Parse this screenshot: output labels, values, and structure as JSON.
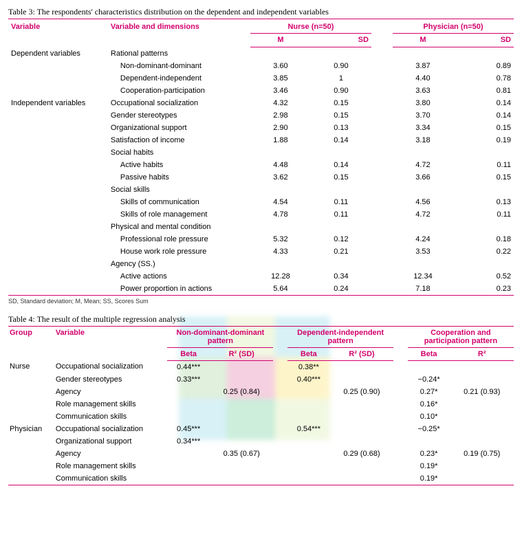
{
  "table3": {
    "caption": "Table 3: The respondents' characteristics distribution on the dependent and independent variables",
    "columns": {
      "variable": "Variable",
      "dimensions": "Variable and dimensions",
      "nurse": "Nurse (n=50)",
      "physician": "Physician (n=50)",
      "M": "M",
      "SD": "SD"
    },
    "rows": [
      {
        "var": "Dependent variables",
        "dim": "Rational patterns",
        "nm": "",
        "ns": "",
        "pm": "",
        "ps": "",
        "indent": false
      },
      {
        "var": "",
        "dim": "Non-dominant-dominant",
        "nm": "3.60",
        "ns": "0.90",
        "pm": "3.87",
        "ps": "0.89",
        "indent": true
      },
      {
        "var": "",
        "dim": "Dependent-independent",
        "nm": "3.85",
        "ns": "1",
        "pm": "4.40",
        "ps": "0.78",
        "indent": true
      },
      {
        "var": "",
        "dim": "Cooperation-participation",
        "nm": "3.46",
        "ns": "0.90",
        "pm": "3.63",
        "ps": "0.81",
        "indent": true
      },
      {
        "var": "Independent variables",
        "dim": "Occupational socialization",
        "nm": "4.32",
        "ns": "0.15",
        "pm": "3.80",
        "ps": "0.14",
        "indent": false
      },
      {
        "var": "",
        "dim": "Gender stereotypes",
        "nm": "2.98",
        "ns": "0.15",
        "pm": "3.70",
        "ps": "0.14",
        "indent": false
      },
      {
        "var": "",
        "dim": "Organizational support",
        "nm": "2.90",
        "ns": "0.13",
        "pm": "3.34",
        "ps": "0.15",
        "indent": false
      },
      {
        "var": "",
        "dim": "Satisfaction of income",
        "nm": "1.88",
        "ns": "0.14",
        "pm": "3.18",
        "ps": "0.19",
        "indent": false
      },
      {
        "var": "",
        "dim": "Social habits",
        "nm": "",
        "ns": "",
        "pm": "",
        "ps": "",
        "indent": false
      },
      {
        "var": "",
        "dim": "Active habits",
        "nm": "4.48",
        "ns": "0.14",
        "pm": "4.72",
        "ps": "0.11",
        "indent": true
      },
      {
        "var": "",
        "dim": "Passive habits",
        "nm": "3.62",
        "ns": "0.15",
        "pm": "3.66",
        "ps": "0.15",
        "indent": true
      },
      {
        "var": "",
        "dim": "Social skills",
        "nm": "",
        "ns": "",
        "pm": "",
        "ps": "",
        "indent": false
      },
      {
        "var": "",
        "dim": "Skills of communication",
        "nm": "4.54",
        "ns": "0.11",
        "pm": "4.56",
        "ps": "0.13",
        "indent": true
      },
      {
        "var": "",
        "dim": "Skills of role management",
        "nm": "4.78",
        "ns": "0.11",
        "pm": "4.72",
        "ps": "0.11",
        "indent": true
      },
      {
        "var": "",
        "dim": "Physical and mental condition",
        "nm": "",
        "ns": "",
        "pm": "",
        "ps": "",
        "indent": false
      },
      {
        "var": "",
        "dim": "Professional role pressure",
        "nm": "5.32",
        "ns": "0.12",
        "pm": "4.24",
        "ps": "0.18",
        "indent": true
      },
      {
        "var": "",
        "dim": "House work role pressure",
        "nm": "4.33",
        "ns": "0.21",
        "pm": "3.53",
        "ps": "0.22",
        "indent": true
      },
      {
        "var": "",
        "dim": "Agency (SS.)",
        "nm": "",
        "ns": "",
        "pm": "",
        "ps": "",
        "indent": false
      },
      {
        "var": "",
        "dim": "Active actions",
        "nm": "12.28",
        "ns": "0.34",
        "pm": "12.34",
        "ps": "0.52",
        "indent": true
      },
      {
        "var": "",
        "dim": "Power proportion in actions",
        "nm": "5.64",
        "ns": "0.24",
        "pm": "7.18",
        "ps": "0.23",
        "indent": true
      }
    ],
    "footnote": "SD, Standard deviation; M, Mean; SS, Scores Sum"
  },
  "table4": {
    "caption": "Table 4: The result of the multiple regression analysis",
    "columns": {
      "group": "Group",
      "variable": "Variable",
      "p1": "Non-dominant-dominant pattern",
      "p2": "Dependent-independent pattern",
      "p3": "Cooperation and participation pattern",
      "beta": "Beta",
      "r2sd": "R² (SD)",
      "r2": "R²"
    },
    "rows": [
      {
        "g": "Nurse",
        "v": "Occupational socialization",
        "b1": "0.44***",
        "r1": "",
        "b2": "0.38**",
        "r2": "",
        "b3": "",
        "r3": ""
      },
      {
        "g": "",
        "v": "Gender stereotypes",
        "b1": "0.33***",
        "r1": "",
        "b2": "0.40***",
        "r2": "",
        "b3": "−0.24*",
        "r3": ""
      },
      {
        "g": "",
        "v": "Agency",
        "b1": "",
        "r1": "0.25 (0.84)",
        "b2": "",
        "r2": "0.25 (0.90)",
        "b3": "0.27*",
        "r3": "0.21 (0.93)"
      },
      {
        "g": "",
        "v": "Role management skills",
        "b1": "",
        "r1": "",
        "b2": "",
        "r2": "",
        "b3": "0.16*",
        "r3": ""
      },
      {
        "g": "",
        "v": "Communication skills",
        "b1": "",
        "r1": "",
        "b2": "",
        "r2": "",
        "b3": "0.10*",
        "r3": ""
      },
      {
        "g": "Physician",
        "v": "Occupational socialization",
        "b1": "0.45***",
        "r1": "",
        "b2": "0.54***",
        "r2": "",
        "b3": "−0.25*",
        "r3": ""
      },
      {
        "g": "",
        "v": "Organizational support",
        "b1": "0.34***",
        "r1": "",
        "b2": "",
        "r2": "",
        "b3": "",
        "r3": ""
      },
      {
        "g": "",
        "v": "Agency",
        "b1": "",
        "r1": "0.35 (0.67)",
        "b2": "",
        "r2": "0.29 (0.68)",
        "b3": "0.23*",
        "r3": "0.19 (0.75)"
      },
      {
        "g": "",
        "v": "Role management skills",
        "b1": "",
        "r1": "",
        "b2": "",
        "r2": "",
        "b3": "0.19*",
        "r3": ""
      },
      {
        "g": "",
        "v": "Communication skills",
        "b1": "",
        "r1": "",
        "b2": "",
        "r2": "",
        "b3": "0.19*",
        "r3": ""
      }
    ]
  },
  "watermark_colors": {
    "a": "#8fd8e8",
    "b": "#d9ecae",
    "c": "#e57ba8",
    "d": "#fbe26a",
    "e": "#6fcf97",
    "f": "#a7d7a0"
  }
}
